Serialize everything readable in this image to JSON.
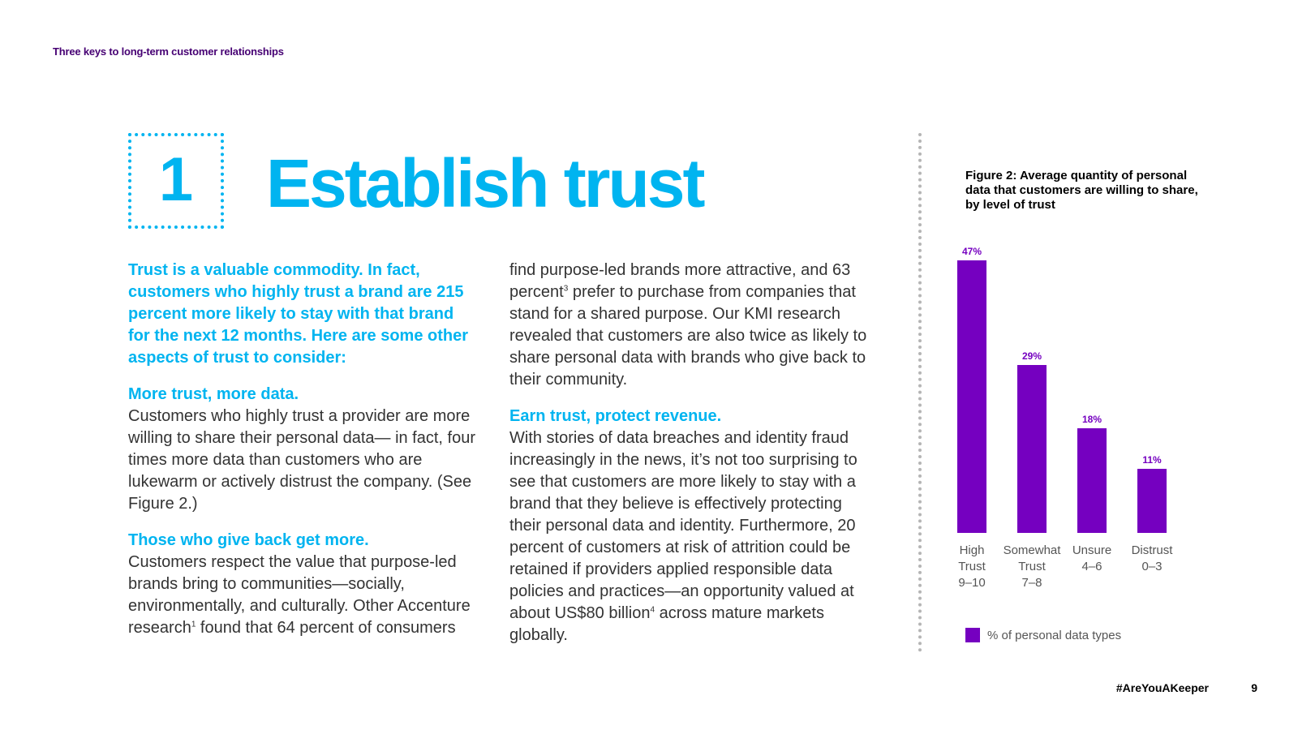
{
  "header": {
    "section_label": "Three keys to long-term customer relationships"
  },
  "section": {
    "number": "1",
    "title": "Establish trust"
  },
  "column1": {
    "lead": "Trust is a valuable commodity. In fact, customers who highly trust a brand are 215 percent more likely to stay with that brand for the next 12 months. Here are some other aspects of trust to consider:",
    "blocks": [
      {
        "heading": "More trust, more data.",
        "body": "Customers who highly trust a provider are more willing to share their personal data— in fact, four times more data than customers who are lukewarm or actively distrust the company. (See Figure 2.)"
      },
      {
        "heading": "Those who give back get more.",
        "body_pre": "Customers respect the value that purpose-led brands bring to communities—socially, environmentally, and culturally. Other Accenture research",
        "sup": "1",
        "body_post": " found that 64 percent of consumers"
      }
    ]
  },
  "column2": {
    "para1_pre": "find purpose-led brands more attractive, and 63 percent",
    "para1_sup": "3",
    "para1_post": " prefer to purchase from companies that stand for a shared purpose. Our KMI research revealed that customers are also twice as likely to share personal data with brands who give back to their community.",
    "heading": "Earn trust, protect revenue.",
    "para2_pre": "With stories of data breaches and identity fraud increasingly in the news, it’s not too surprising to see that customers are more likely to stay with a brand that they believe is effectively protecting their personal data and identity. Furthermore, 20 percent of customers at risk of attrition could be retained if providers applied responsible data policies and practices—an opportunity valued at about US$80 billion",
    "para2_sup": "4",
    "para2_post": " across mature markets globally."
  },
  "chart_data": {
    "type": "bar",
    "title": "Figure 2: Average quantity of personal data that customers are willing to share, by level of trust",
    "categories": [
      "High\nTrust\n9–10",
      "Somewhat\nTrust\n7–8",
      "Unsure\n4–6",
      "Distrust\n0–3"
    ],
    "series": [
      {
        "name": "% of personal data types",
        "values": [
          47,
          29,
          18,
          11
        ]
      }
    ],
    "value_labels": [
      "47%",
      "29%",
      "18%",
      "11%"
    ],
    "ylim": [
      0,
      50
    ],
    "grid": false,
    "legend_position": "bottom-left",
    "bar_color": "#7500c0"
  },
  "footer": {
    "hashtag": "#AreYouAKeeper",
    "page_number": "9"
  },
  "colors": {
    "accent": "#00b4f0",
    "purple": "#7500c0",
    "header": "#460073"
  }
}
